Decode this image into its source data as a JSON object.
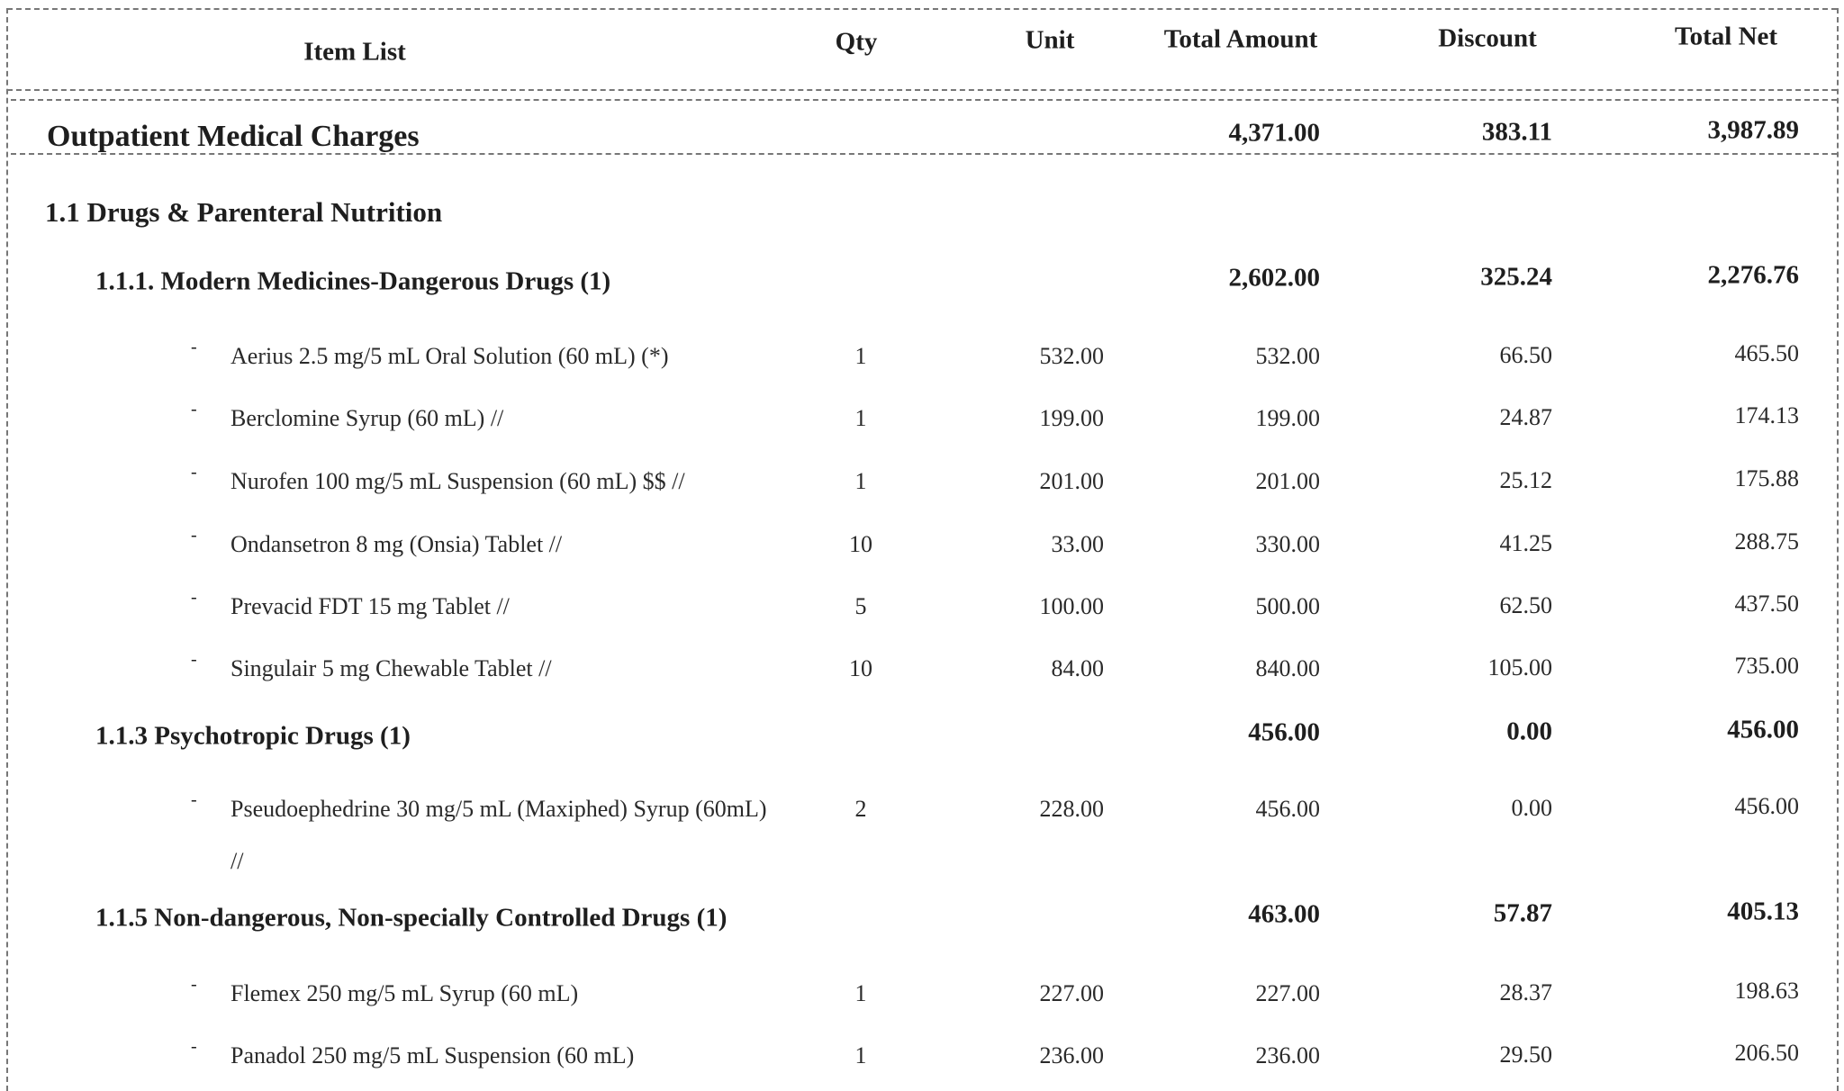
{
  "header": {
    "item_list": "Item List",
    "qty": "Qty",
    "unit": "Unit",
    "total_amount": "Total Amount",
    "discount": "Discount",
    "total_net": "Total Net"
  },
  "rows": [
    {
      "type": "b1",
      "label": "Outpatient Medical Charges",
      "total_amount": "4,371.00",
      "discount": "383.11",
      "total_net": "3,987.89"
    },
    {
      "type": "b2",
      "label": "1.1 Drugs & Parenteral Nutrition"
    },
    {
      "type": "b3",
      "label": "1.1.1. Modern Medicines-Dangerous Drugs (1)",
      "total_amount": "2,602.00",
      "discount": "325.24",
      "total_net": "2,276.76"
    },
    {
      "type": "item",
      "bullet": "-",
      "label": "Aerius 2.5 mg/5 mL Oral Solution (60 mL) (*)",
      "qty": "1",
      "unit": "532.00",
      "total_amount": "532.00",
      "discount": "66.50",
      "total_net": "465.50"
    },
    {
      "type": "item",
      "bullet": "-",
      "label": "Berclomine Syrup (60 mL) //",
      "qty": "1",
      "unit": "199.00",
      "total_amount": "199.00",
      "discount": "24.87",
      "total_net": "174.13"
    },
    {
      "type": "item",
      "bullet": "-",
      "label": "Nurofen 100 mg/5 mL  Suspension (60 mL) $$  //",
      "qty": "1",
      "unit": "201.00",
      "total_amount": "201.00",
      "discount": "25.12",
      "total_net": "175.88"
    },
    {
      "type": "item",
      "bullet": "-",
      "label": "Ondansetron 8 mg (Onsia) Tablet  //",
      "qty": "10",
      "unit": "33.00",
      "total_amount": "330.00",
      "discount": "41.25",
      "total_net": "288.75"
    },
    {
      "type": "item",
      "bullet": "-",
      "label": "Prevacid FDT 15 mg Tablet //",
      "qty": "5",
      "unit": "100.00",
      "total_amount": "500.00",
      "discount": "62.50",
      "total_net": "437.50"
    },
    {
      "type": "item",
      "bullet": "-",
      "label": "Singulair 5 mg Chewable Tablet  //",
      "qty": "10",
      "unit": "84.00",
      "total_amount": "840.00",
      "discount": "105.00",
      "total_net": "735.00"
    },
    {
      "type": "b3",
      "label": "1.1.3 Psychotropic Drugs (1)",
      "total_amount": "456.00",
      "discount": "0.00",
      "total_net": "456.00"
    },
    {
      "type": "item",
      "bullet": "-",
      "label": "Pseudoephedrine 30 mg/5 mL (Maxiphed) Syrup (60mL)",
      "label_cont": "//",
      "qty": "2",
      "unit": "228.00",
      "total_amount": "456.00",
      "discount": "0.00",
      "total_net": "456.00"
    },
    {
      "type": "b3",
      "label": "1.1.5 Non-dangerous, Non-specially Controlled Drugs (1)",
      "total_amount": "463.00",
      "discount": "57.87",
      "total_net": "405.13"
    },
    {
      "type": "item",
      "bullet": "-",
      "label": "Flemex 250 mg/5 mL Syrup (60 mL)",
      "qty": "1",
      "unit": "227.00",
      "total_amount": "227.00",
      "discount": "28.37",
      "total_net": "198.63"
    },
    {
      "type": "item",
      "bullet": "-",
      "label": "Panadol 250 mg/5 mL Suspension (60 mL)",
      "qty": "1",
      "unit": "236.00",
      "total_amount": "236.00",
      "discount": "29.50",
      "total_net": "206.50"
    }
  ]
}
